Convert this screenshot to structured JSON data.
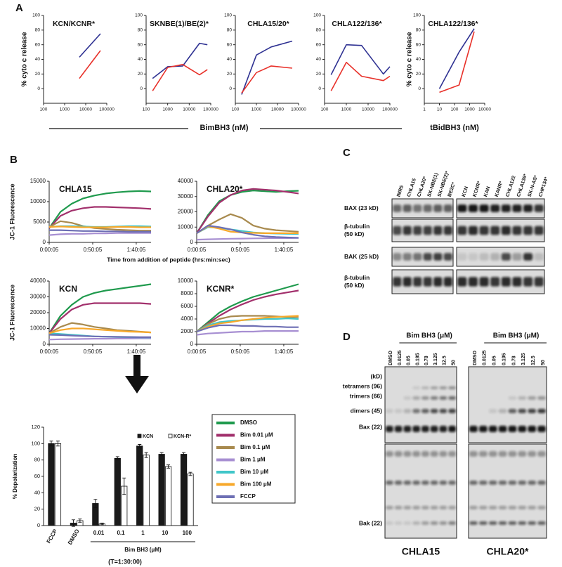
{
  "panel_a": {
    "label": "A",
    "xlabel": "BimBH3 (nM)"
  },
  "panel_b": {
    "label": "B",
    "xlabel": "Time from addition of peptide (hrs:min:sec)",
    "legend": [
      {
        "name": "DMSO",
        "color": "#1f9a4d"
      },
      {
        "name": "Bim 0.01 μM",
        "color": "#a2306c"
      },
      {
        "name": "Bim 0.1 μM",
        "color": "#a88a4e"
      },
      {
        "name": "Bim 1 μM",
        "color": "#a78fd2"
      },
      {
        "name": "Bim 10 μM",
        "color": "#40c6c9"
      },
      {
        "name": "Bim 100 μM",
        "color": "#f7a82a"
      },
      {
        "name": "FCCP",
        "color": "#6d6fb4"
      }
    ]
  },
  "chart_data": [
    {
      "type": "line",
      "title": "KCN/KCNR*",
      "ylabel": "% cyto c release",
      "xscale": "log",
      "xlim": [
        100,
        100000
      ],
      "xticks": [
        100,
        1000,
        10000,
        100000
      ],
      "ylim": [
        -20,
        100
      ],
      "yticks": [
        0,
        20,
        40,
        60,
        80,
        100
      ],
      "x": [
        5000,
        50000
      ],
      "series": [
        {
          "color": "#2e3192",
          "values": [
            43,
            75
          ]
        },
        {
          "color": "#e8312a",
          "values": [
            14,
            52
          ]
        }
      ]
    },
    {
      "type": "line",
      "title": "SKNBE(1)/BE(2)*",
      "xscale": "log",
      "xlim": [
        100,
        100000
      ],
      "xticks": [
        100,
        1000,
        10000,
        100000
      ],
      "ylim": [
        -20,
        100
      ],
      "yticks": [
        0,
        20,
        40,
        60,
        80,
        100
      ],
      "x": [
        200,
        1000,
        5000,
        30000,
        70000
      ],
      "series": [
        {
          "color": "#2e3192",
          "values": [
            14,
            30,
            31,
            62,
            60
          ]
        },
        {
          "color": "#e8312a",
          "values": [
            -3,
            29,
            33,
            19,
            26
          ]
        }
      ]
    },
    {
      "type": "line",
      "title": "CHLA15/20*",
      "xscale": "log",
      "xlim": [
        100,
        100000
      ],
      "xticks": [
        100,
        1000,
        10000,
        100000
      ],
      "ylim": [
        -20,
        100
      ],
      "yticks": [
        0,
        20,
        40,
        60,
        80,
        100
      ],
      "x": [
        200,
        1000,
        5000,
        50000
      ],
      "series": [
        {
          "color": "#2e3192",
          "values": [
            -8,
            46,
            57,
            65
          ]
        },
        {
          "color": "#e8312a",
          "values": [
            -6,
            22,
            31,
            28
          ]
        }
      ]
    },
    {
      "type": "line",
      "title": "CHLA122/136*",
      "xscale": "log",
      "xlim": [
        100,
        100000
      ],
      "xticks": [
        100,
        1000,
        10000,
        100000
      ],
      "ylim": [
        -20,
        100
      ],
      "yticks": [
        0,
        20,
        40,
        60,
        80,
        100
      ],
      "x": [
        200,
        1000,
        5000,
        50000,
        100000
      ],
      "series": [
        {
          "color": "#2e3192",
          "values": [
            19,
            60,
            59,
            20,
            30
          ]
        },
        {
          "color": "#e8312a",
          "values": [
            -3,
            36,
            17,
            11,
            17
          ]
        }
      ]
    },
    {
      "type": "line",
      "title": "CHLA122/136*",
      "ylabel": "% cyto c release",
      "xlabel": "tBidBH3 (nM)",
      "xscale": "log",
      "xlim": [
        1,
        10000
      ],
      "xticks": [
        1,
        10,
        100,
        1000,
        10000
      ],
      "ylim": [
        -20,
        100
      ],
      "yticks": [
        0,
        20,
        40,
        60,
        80,
        100
      ],
      "x": [
        10,
        200,
        2000
      ],
      "series": [
        {
          "color": "#2e3192",
          "values": [
            0,
            50,
            82
          ]
        },
        {
          "color": "#e8312a",
          "values": [
            -5,
            5,
            78
          ]
        }
      ]
    },
    {
      "type": "line",
      "title": "CHLA15",
      "ylabel": "JC-1 Fluorescence",
      "xlim": [
        0,
        117
      ],
      "xticks": [
        {
          "value": 0,
          "label": "0:00:05"
        },
        {
          "value": 50,
          "label": "0:50:05"
        },
        {
          "value": 100,
          "label": "1:40:05"
        }
      ],
      "ylim": [
        0,
        15000
      ],
      "yticks": [
        0,
        5000,
        10000,
        15000
      ],
      "x": [
        0,
        13,
        26,
        39,
        52,
        65,
        78,
        91,
        104,
        117
      ],
      "series": [
        {
          "values": [
            3500,
            7500,
            9500,
            10800,
            11500,
            12000,
            12300,
            12500,
            12600,
            12500
          ]
        },
        {
          "values": [
            3500,
            6500,
            7800,
            8400,
            8700,
            8700,
            8600,
            8500,
            8400,
            8200
          ]
        },
        {
          "values": [
            3800,
            5200,
            4800,
            4000,
            3500,
            3300,
            3100,
            3000,
            2900,
            2900
          ]
        },
        {
          "values": [
            1800,
            2000,
            2100,
            2100,
            2200,
            2200,
            2300,
            2300,
            2300,
            2300
          ]
        },
        {
          "values": [
            3800,
            4000,
            4000,
            3900,
            3800,
            3800,
            3900,
            4000,
            4000,
            3900
          ]
        },
        {
          "values": [
            3800,
            3900,
            3800,
            3700,
            3700,
            3700,
            3800,
            3800,
            3700,
            3700
          ]
        },
        {
          "values": [
            3000,
            3000,
            2900,
            2800,
            2800,
            2700,
            2700,
            2600,
            2600,
            2600
          ]
        }
      ]
    },
    {
      "type": "line",
      "title": "CHLA20*",
      "xlim": [
        0,
        117
      ],
      "xticks": [
        {
          "value": 0,
          "label": "0:00:05"
        },
        {
          "value": 50,
          "label": "0:50:05"
        },
        {
          "value": 100,
          "label": "1:40:05"
        }
      ],
      "ylim": [
        0,
        40000
      ],
      "yticks": [
        0,
        10000,
        20000,
        30000,
        40000
      ],
      "x": [
        0,
        13,
        26,
        39,
        52,
        65,
        78,
        91,
        104,
        117
      ],
      "series": [
        {
          "values": [
            6000,
            18000,
            27000,
            31000,
            33000,
            34000,
            33500,
            33000,
            33500,
            33800
          ]
        },
        {
          "values": [
            6000,
            17000,
            26000,
            31000,
            34000,
            35000,
            34500,
            34000,
            33000,
            32000
          ]
        },
        {
          "values": [
            6000,
            11000,
            15000,
            18500,
            16000,
            11000,
            9000,
            8000,
            7500,
            7000
          ]
        },
        {
          "values": [
            1800,
            2000,
            2200,
            2400,
            2500,
            2600,
            2700,
            2800,
            2800,
            2900
          ]
        },
        {
          "values": [
            6000,
            10000,
            9500,
            8500,
            7500,
            6500,
            6000,
            5800,
            5600,
            5500
          ]
        },
        {
          "values": [
            6000,
            10500,
            9000,
            7000,
            6500,
            6200,
            6000,
            6000,
            6000,
            6000
          ]
        },
        {
          "values": [
            6000,
            11000,
            10000,
            8500,
            6500,
            5000,
            4000,
            3500,
            3200,
            3000
          ]
        }
      ]
    },
    {
      "type": "line",
      "title": "KCN",
      "ylabel": "JC-1 Fluorescence",
      "xlim": [
        0,
        117
      ],
      "xticks": [
        {
          "value": 0,
          "label": "0:00:05"
        },
        {
          "value": 50,
          "label": "0:50:05"
        },
        {
          "value": 100,
          "label": "1:40:05"
        }
      ],
      "ylim": [
        0,
        40000
      ],
      "yticks": [
        0,
        10000,
        20000,
        30000,
        40000
      ],
      "x": [
        0,
        13,
        26,
        39,
        52,
        65,
        78,
        91,
        104,
        117
      ],
      "series": [
        {
          "values": [
            7000,
            18000,
            25000,
            30000,
            32500,
            34000,
            35000,
            36000,
            37000,
            38000
          ]
        },
        {
          "values": [
            7000,
            16000,
            22000,
            25000,
            26000,
            26000,
            26000,
            26000,
            26000,
            25500
          ]
        },
        {
          "values": [
            7000,
            11000,
            13500,
            12500,
            11000,
            10000,
            9000,
            8500,
            8000,
            7500
          ]
        },
        {
          "values": [
            3000,
            3200,
            3300,
            3400,
            3500,
            3500,
            3600,
            3600,
            3700,
            3700
          ]
        },
        {
          "values": [
            7000,
            6500,
            6000,
            5500,
            5000,
            4800,
            4600,
            4500,
            4400,
            4300
          ]
        },
        {
          "values": [
            7000,
            9000,
            10000,
            10000,
            9500,
            9000,
            8500,
            8000,
            7800,
            7500
          ]
        },
        {
          "values": [
            6000,
            5800,
            5500,
            5200,
            5000,
            4800,
            4700,
            4600,
            4500,
            4500
          ]
        }
      ]
    },
    {
      "type": "line",
      "title": "KCNR*",
      "xlim": [
        0,
        117
      ],
      "xticks": [
        {
          "value": 0,
          "label": "0:00:05"
        },
        {
          "value": 50,
          "label": "0:50:05"
        },
        {
          "value": 100,
          "label": "1:40:05"
        }
      ],
      "ylim": [
        0,
        10000
      ],
      "yticks": [
        0,
        2000,
        4000,
        6000,
        8000,
        10000
      ],
      "x": [
        0,
        13,
        26,
        39,
        52,
        65,
        78,
        91,
        104,
        117
      ],
      "series": [
        {
          "values": [
            2000,
            3500,
            5000,
            6000,
            6800,
            7500,
            8000,
            8500,
            9000,
            9500
          ]
        },
        {
          "values": [
            2000,
            3300,
            4500,
            5500,
            6300,
            7000,
            7500,
            7900,
            8200,
            8500
          ]
        },
        {
          "values": [
            2000,
            3200,
            4000,
            4400,
            4500,
            4500,
            4500,
            4400,
            4300,
            4300
          ]
        },
        {
          "values": [
            1500,
            1700,
            1800,
            1900,
            2000,
            2000,
            2100,
            2100,
            2100,
            2100
          ]
        },
        {
          "values": [
            2000,
            3000,
            3500,
            3700,
            3800,
            3900,
            4000,
            4000,
            4100,
            4000
          ]
        },
        {
          "values": [
            2000,
            2800,
            3300,
            3500,
            3800,
            4000,
            4200,
            4300,
            4400,
            4500
          ]
        },
        {
          "values": [
            2000,
            2600,
            3000,
            3000,
            2900,
            2900,
            2800,
            2800,
            2700,
            2700
          ]
        }
      ]
    },
    {
      "type": "bar",
      "ylabel": "% Depolarization",
      "xlabel": "Bim BH3 (μM)",
      "note": "(T=1:30:00)",
      "categories": [
        "FCCP",
        "DMSO",
        "0.01",
        "0.1",
        "1",
        "10",
        "100"
      ],
      "ylim": [
        0,
        120
      ],
      "yticks": [
        0,
        20,
        40,
        60,
        80,
        100,
        120
      ],
      "series": [
        {
          "name": "KCN",
          "color": "#1a1a1a",
          "values": [
            100,
            3,
            27,
            82,
            97,
            87,
            87
          ],
          "errors": [
            3,
            4,
            5,
            2,
            2,
            2,
            2
          ]
        },
        {
          "name": "KCN-R*",
          "color": "#ffffff",
          "values": [
            100,
            6,
            2,
            48,
            86,
            72,
            63
          ],
          "errors": [
            3,
            2,
            1,
            10,
            3,
            2,
            2
          ]
        }
      ]
    }
  ],
  "blot_c": {
    "label": "C",
    "lanes_left": [
      "IMR5",
      "CHLA15",
      "CHLA20*",
      "SK-NBE(1)",
      "SK-NBE(2)*",
      "BE2C*"
    ],
    "lanes_right": [
      "KCN",
      "KCNR*",
      "KAN",
      "KANR*",
      "CHLA122",
      "CHLA136*",
      "SK-N-AS*",
      "CHP134*"
    ],
    "rows": [
      [
        "BAX (23 kD)"
      ],
      [
        "β-tubulin",
        "(50 kD)"
      ],
      [
        "BAK (25 kD)"
      ],
      [
        "β-tubulin",
        "(50 kD)"
      ]
    ]
  },
  "blot_d": {
    "label": "D",
    "markers": [
      "(kD)",
      "tetramers (96)",
      "trimers (66)",
      "dimers (45)",
      "Bax (22)",
      "Bak (22)"
    ],
    "groups": [
      {
        "header": "Bim BH3 (μM)",
        "lanes": [
          "DMSO",
          "0.0125",
          "0.05",
          "0.195",
          "0.78",
          "3.125",
          "12.5",
          "50"
        ],
        "cell_line": "CHLA15"
      },
      {
        "header": "Bim BH3 (μM)",
        "lanes": [
          "DMSO",
          "0.0125",
          "0.05",
          "0.195",
          "0.78",
          "3.125",
          "12.5",
          "50"
        ],
        "cell_line": "CHLA20*"
      }
    ]
  }
}
